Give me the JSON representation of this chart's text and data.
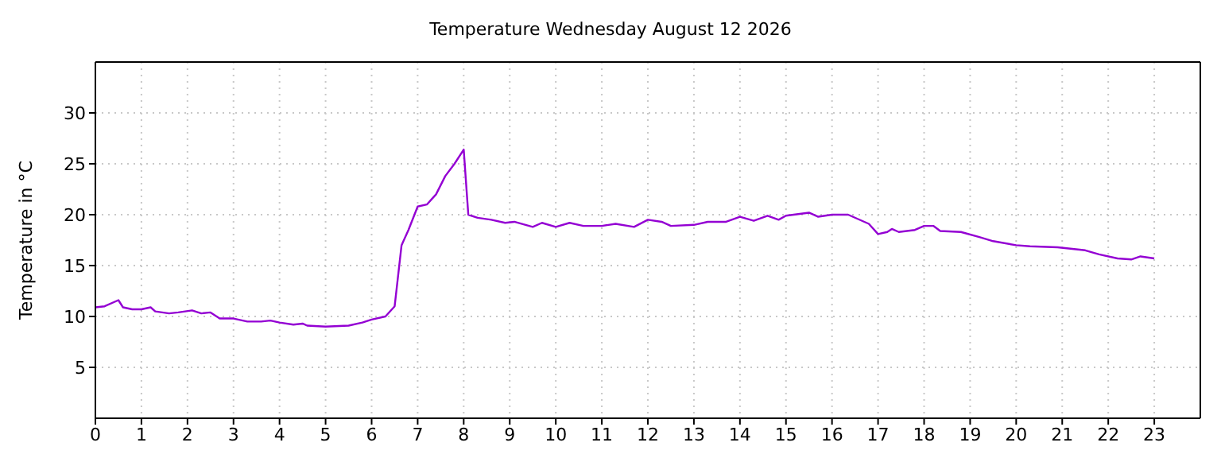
{
  "chart_data": {
    "type": "line",
    "title": "Temperature Wednesday August 12 2026",
    "ylabel": "Temperature in °C",
    "x": [
      0,
      0.2,
      0.5,
      0.6,
      0.8,
      1.0,
      1.2,
      1.3,
      1.6,
      1.8,
      2.1,
      2.3,
      2.5,
      2.7,
      3.0,
      3.3,
      3.6,
      3.8,
      4.0,
      4.3,
      4.5,
      4.6,
      5.0,
      5.5,
      5.8,
      6.0,
      6.3,
      6.5,
      6.65,
      6.8,
      7.0,
      7.2,
      7.4,
      7.6,
      7.8,
      8.0,
      8.1,
      8.3,
      8.6,
      8.9,
      9.1,
      9.5,
      9.7,
      10.0,
      10.3,
      10.6,
      11.0,
      11.3,
      11.7,
      12.0,
      12.3,
      12.5,
      13.0,
      13.3,
      13.7,
      14.0,
      14.3,
      14.6,
      14.84,
      15.0,
      15.5,
      15.7,
      16.0,
      16.35,
      16.8,
      17.0,
      17.2,
      17.3,
      17.45,
      17.8,
      18.0,
      18.2,
      18.35,
      18.8,
      19.2,
      19.5,
      20.0,
      20.3,
      20.9,
      21.5,
      21.8,
      22.2,
      22.5,
      22.7,
      23.0
    ],
    "series": [
      {
        "color": "#9400d3",
        "values": [
          10.9,
          11.0,
          11.6,
          10.9,
          10.7,
          10.7,
          10.9,
          10.5,
          10.3,
          10.4,
          10.6,
          10.3,
          10.4,
          9.8,
          9.8,
          9.5,
          9.5,
          9.6,
          9.4,
          9.2,
          9.3,
          9.1,
          9.0,
          9.1,
          9.4,
          9.7,
          10.0,
          11.0,
          17.0,
          18.5,
          20.8,
          21.0,
          22.0,
          23.8,
          25.0,
          26.4,
          20.0,
          19.7,
          19.5,
          19.2,
          19.3,
          18.8,
          19.2,
          18.8,
          19.2,
          18.9,
          18.9,
          19.1,
          18.8,
          19.5,
          19.3,
          18.9,
          19.0,
          19.3,
          19.3,
          19.8,
          19.4,
          19.9,
          19.5,
          19.9,
          20.2,
          19.8,
          20.0,
          20.0,
          19.1,
          18.1,
          18.3,
          18.6,
          18.3,
          18.5,
          18.9,
          18.9,
          18.4,
          18.3,
          17.8,
          17.4,
          17.0,
          16.9,
          16.8,
          16.5,
          16.1,
          15.7,
          15.6,
          15.9,
          15.7
        ]
      }
    ],
    "xlim": [
      0,
      24
    ],
    "xticks": [
      0,
      1,
      2,
      3,
      4,
      5,
      6,
      7,
      8,
      9,
      10,
      11,
      12,
      13,
      14,
      15,
      16,
      17,
      18,
      19,
      20,
      21,
      22,
      23
    ],
    "ylim": [
      0,
      35
    ],
    "yticks": [
      5,
      10,
      15,
      20,
      25,
      30
    ],
    "grid": true,
    "legend": false,
    "marker": "none",
    "line_style": "solid"
  }
}
